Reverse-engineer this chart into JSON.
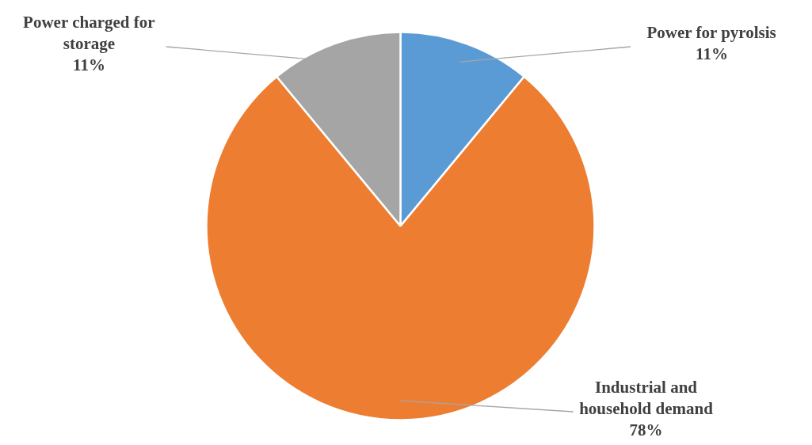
{
  "chart_data": {
    "type": "pie",
    "categories": [
      "Power for pyrolsis",
      "Industrial and household demand",
      "Power charged for storage"
    ],
    "values": [
      11,
      78,
      11
    ],
    "colors": [
      "#5b9bd5",
      "#ed7d31",
      "#a5a5a5"
    ],
    "value_labels": [
      "11%",
      "78%",
      "11%"
    ]
  }
}
